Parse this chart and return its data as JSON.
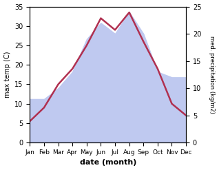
{
  "months": [
    "Jan",
    "Feb",
    "Mar",
    "Apr",
    "May",
    "Jun",
    "Jul",
    "Aug",
    "Sep",
    "Oct",
    "Nov",
    "Dec"
  ],
  "temp": [
    5.5,
    9.0,
    15.0,
    19.0,
    25.0,
    32.0,
    29.0,
    33.5,
    26.0,
    19.0,
    10.0,
    7.0
  ],
  "precip": [
    8.0,
    8.0,
    10.0,
    13.0,
    19.0,
    22.0,
    20.0,
    24.0,
    20.0,
    13.0,
    12.0,
    12.0
  ],
  "temp_color": "#b03050",
  "precip_fill_color": "#bfc9f0",
  "ylim_temp": [
    0,
    35
  ],
  "ylim_precip": [
    0,
    25
  ],
  "ylabel_left": "max temp (C)",
  "ylabel_right": "med. precipitation (kg/m2)",
  "xlabel": "date (month)",
  "bg_color": "#ffffff"
}
